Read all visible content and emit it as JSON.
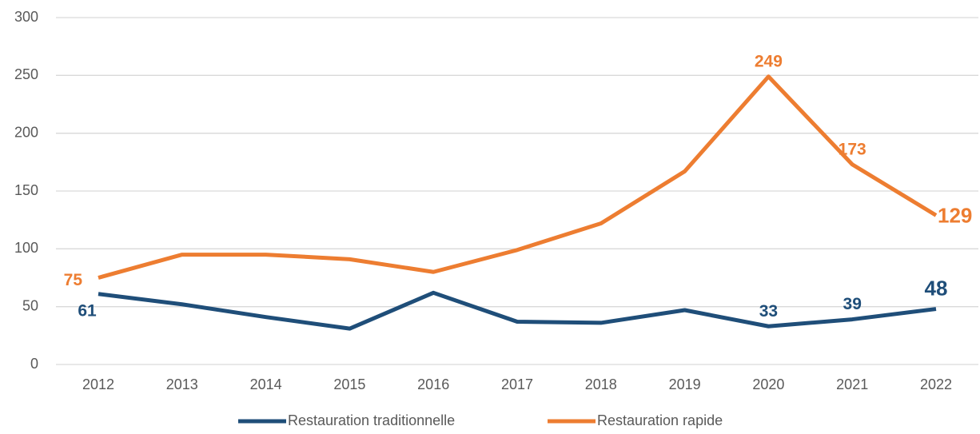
{
  "chart_data": {
    "type": "line",
    "x": [
      2012,
      2013,
      2014,
      2015,
      2016,
      2017,
      2018,
      2019,
      2020,
      2021,
      2022
    ],
    "series": [
      {
        "name": "Restauration traditionnelle",
        "color": "#1f4e79",
        "values": [
          61,
          52,
          41,
          31,
          62,
          37,
          36,
          47,
          33,
          39,
          48
        ],
        "value_labels": [
          "61",
          null,
          null,
          null,
          null,
          null,
          null,
          null,
          "33",
          "39",
          "48"
        ]
      },
      {
        "name": "Restauration rapide",
        "color": "#ed7d31",
        "values": [
          75,
          95,
          95,
          91,
          80,
          99,
          122,
          167,
          249,
          173,
          129
        ],
        "value_labels": [
          "75",
          null,
          null,
          null,
          null,
          null,
          null,
          null,
          "249",
          "173",
          "129"
        ]
      }
    ],
    "ylim": [
      0,
      300
    ],
    "yticks": [
      0,
      50,
      100,
      150,
      200,
      250,
      300
    ],
    "grid": true,
    "legend": "bottom"
  }
}
